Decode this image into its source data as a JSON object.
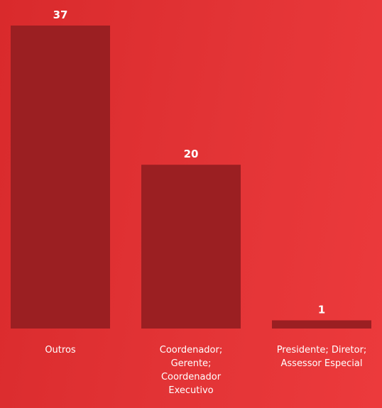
{
  "chart_data": {
    "type": "bar",
    "categories": [
      "Outros",
      "Coordenador; Gerente; Coordenador Executivo",
      "Presidente; Diretor; Assessor Especial"
    ],
    "category_label_lines": [
      [
        "Outros"
      ],
      [
        "Coordenador;",
        "Gerente;",
        "Coordenador",
        "Executivo"
      ],
      [
        "Presidente; Diretor;",
        "Assessor Especial"
      ]
    ],
    "values": [
      37,
      20,
      1
    ],
    "title": "",
    "xlabel": "",
    "ylabel": "",
    "ylim": [
      0,
      37
    ],
    "grid": false,
    "legend": "none",
    "colors": {
      "bar": "#9b1f22",
      "background_start": "#d92a2c",
      "background_end": "#ec3a3c",
      "text": "#ffffff"
    }
  }
}
